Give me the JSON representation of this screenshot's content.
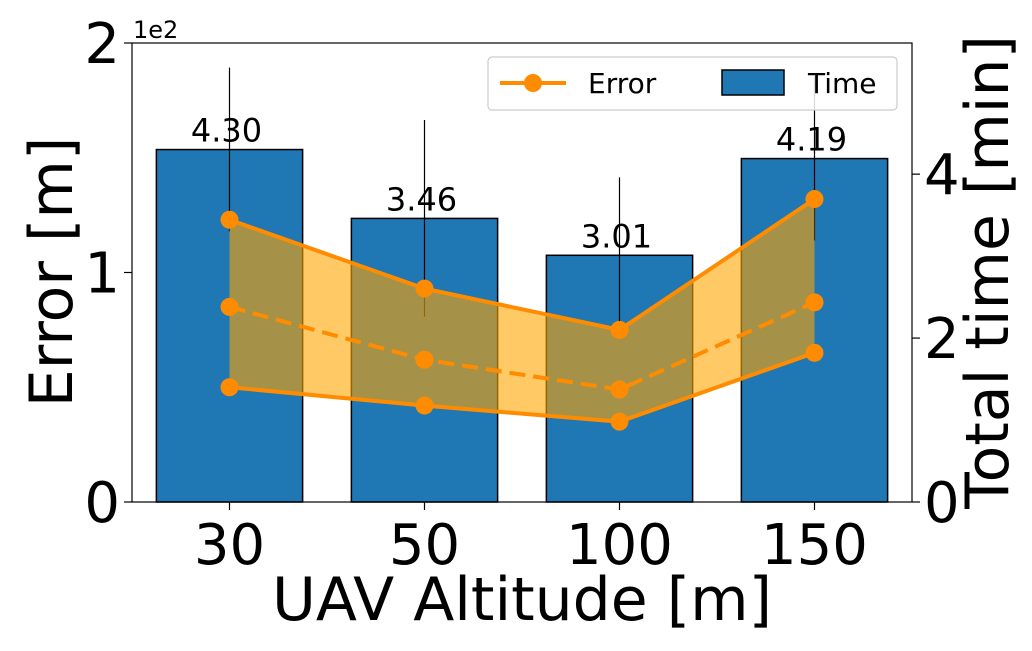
{
  "chart_data": {
    "type": "bar",
    "categories": [
      "30",
      "50",
      "100",
      "150"
    ],
    "xlabel": "UAV Altitude [m]",
    "ylabel_left": "Error [m]",
    "ylabel_right": "Total time [min]",
    "left_axis": {
      "ylim": [
        0,
        200
      ],
      "ticks": [
        0,
        100,
        200
      ],
      "tick_labels": [
        "0",
        "1",
        "2"
      ],
      "offset_text": "1e2"
    },
    "right_axis": {
      "ylim": [
        0,
        5.6
      ],
      "ticks": [
        0,
        2,
        4
      ],
      "tick_labels": [
        "0",
        "2",
        "4"
      ]
    },
    "bars": {
      "name": "Time",
      "axis": "right",
      "color": "#1f77b4",
      "values": [
        4.3,
        3.46,
        3.01,
        4.19
      ],
      "value_labels": [
        "4.30",
        "3.46",
        "3.01",
        "4.19"
      ],
      "errors": [
        1.0,
        1.2,
        0.95,
        1.0
      ]
    },
    "error_series": {
      "name": "Error",
      "axis": "left",
      "color": "#ff8c00",
      "fill_color": "#ffa500",
      "mean": [
        85,
        62,
        49,
        87
      ],
      "upper": [
        123,
        93,
        75,
        132
      ],
      "lower": [
        50,
        42,
        35,
        65
      ]
    },
    "legend": {
      "position": "top-right",
      "entries": [
        "Error",
        "Time"
      ]
    },
    "grid": false
  }
}
